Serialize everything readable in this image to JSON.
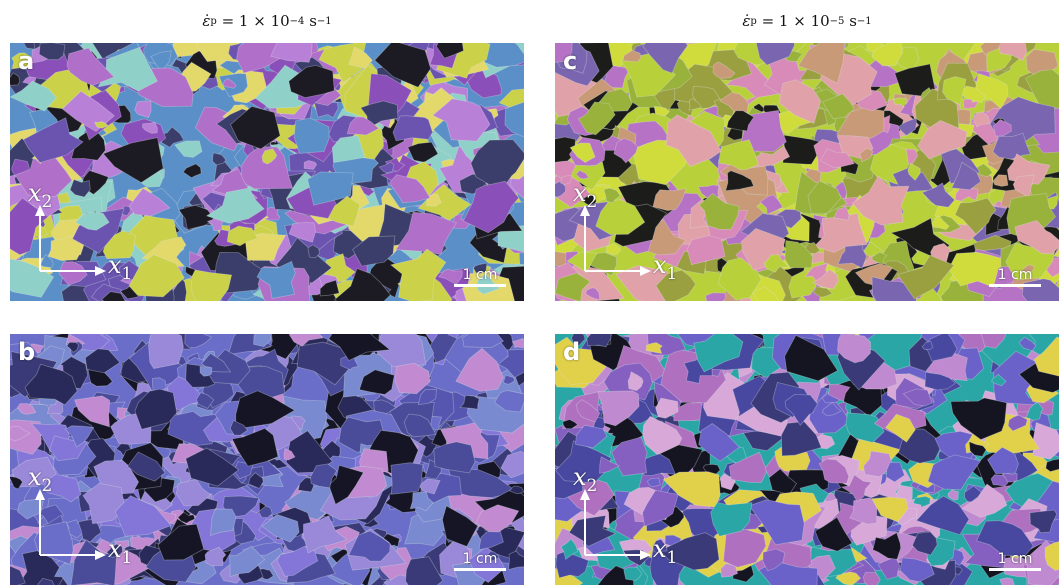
{
  "columns": [
    {
      "symbol": "ε̇",
      "subscript": "p",
      "equals": " = 1 × 10",
      "exponent": "−4",
      "unit": " s",
      "unit_exp": "−1"
    },
    {
      "symbol": "ε̇",
      "subscript": "p",
      "equals": " = 1 × 10",
      "exponent": "−5",
      "unit": " s",
      "unit_exp": "−1"
    }
  ],
  "panels": [
    {
      "letter": "a",
      "palette": [
        "#5a8fc8",
        "#8fd0c8",
        "#cbd24a",
        "#e3d86a",
        "#b06fc8",
        "#8a4fb8",
        "#1c1a22",
        "#b980d8",
        "#6a54b0",
        "#3b3d6a"
      ]
    },
    {
      "letter": "c",
      "palette": [
        "#b8d03a",
        "#d0dc3c",
        "#98b23c",
        "#c89a78",
        "#d88ab8",
        "#b672c4",
        "#1c1c1a",
        "#e0a2a8",
        "#9aa040",
        "#7a66b0"
      ]
    },
    {
      "letter": "b",
      "palette": [
        "#6a6ec8",
        "#8476d8",
        "#4a4c9a",
        "#2a2a5a",
        "#9a88d8",
        "#5656b0",
        "#151526",
        "#c28ad0",
        "#7a8ad0",
        "#3a3a78"
      ]
    },
    {
      "letter": "d",
      "palette": [
        "#2aa6a6",
        "#6a62c8",
        "#c08ad0",
        "#d8a8d8",
        "#8660c0",
        "#4848a0",
        "#151522",
        "#e0d04a",
        "#b070c0",
        "#3a3a78"
      ]
    }
  ],
  "axes": {
    "x_symbol": "x",
    "x_index": "1",
    "y_symbol": "x",
    "y_index": "2"
  },
  "scale_bar": {
    "label": "1 cm"
  },
  "colors": {
    "overlay": "#ffffff",
    "background": "#ffffff"
  }
}
